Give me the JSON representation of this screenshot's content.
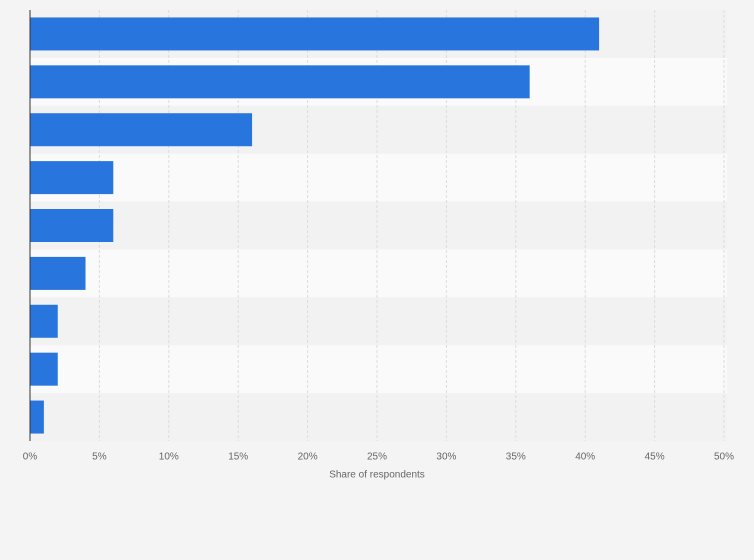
{
  "chart_data": {
    "type": "hbar",
    "categories": [
      null,
      null,
      null,
      null,
      null,
      null,
      null,
      null,
      null
    ],
    "values": [
      41,
      36,
      16,
      6,
      6,
      4,
      2,
      2,
      1
    ],
    "color": "#2876dd",
    "xlabel": "Share of respondents",
    "xlim": [
      0,
      50
    ],
    "xticks": [
      {
        "value": 0,
        "label": "0%"
      },
      {
        "value": 5,
        "label": "5%"
      },
      {
        "value": 10,
        "label": "10%"
      },
      {
        "value": 15,
        "label": "15%"
      },
      {
        "value": 20,
        "label": "20%"
      },
      {
        "value": 25,
        "label": "25%"
      },
      {
        "value": 30,
        "label": "30%"
      },
      {
        "value": 35,
        "label": "35%"
      },
      {
        "value": 40,
        "label": "40%"
      },
      {
        "value": 45,
        "label": "45%"
      },
      {
        "value": 50,
        "label": "50%"
      }
    ],
    "grid": true
  }
}
